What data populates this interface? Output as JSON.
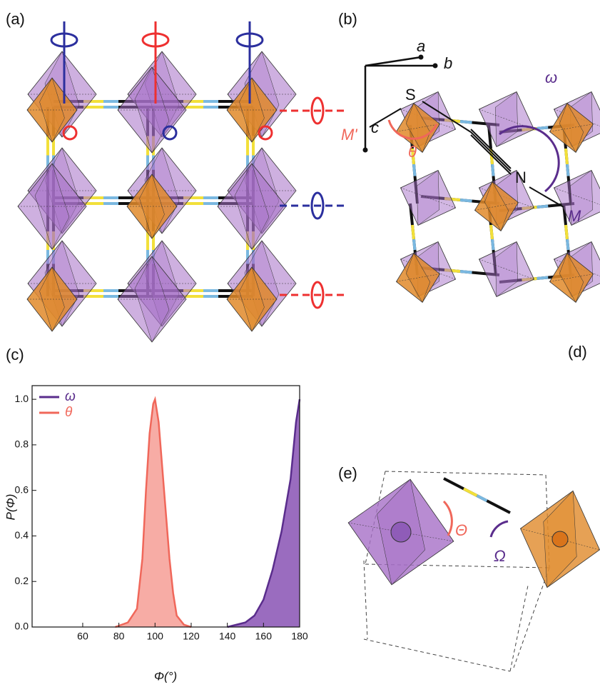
{
  "panels": {
    "a": {
      "label": "(a)"
    },
    "b": {
      "label": "(b)",
      "axes": [
        "a",
        "b",
        "c"
      ]
    },
    "d": {
      "label": "(d)",
      "atoms": [
        "S",
        "N",
        "M'",
        "M"
      ],
      "angles": [
        "θ",
        "ω"
      ]
    },
    "e": {
      "label": "(e)",
      "angles": [
        "Θ",
        "Ω"
      ]
    }
  },
  "chart_data": {
    "type": "area",
    "label": "(c)",
    "xlabel": "Φ(°)",
    "ylabel": "P(Φ)",
    "xlim": [
      32,
      180
    ],
    "xticks": [
      60,
      80,
      100,
      120,
      140,
      160,
      180
    ],
    "ylim": [
      0,
      1.06
    ],
    "yticks": [
      {
        "value": 0,
        "label": "0.0"
      },
      0.2,
      0.4,
      0.6,
      0.8,
      {
        "value": 1,
        "label": "1.0"
      }
    ],
    "legend": "upper left",
    "series": [
      {
        "name": "ω",
        "color": "#5a2d8c",
        "fill": "#8f5cb8",
        "x": [
          140,
          150,
          155,
          160,
          165,
          170,
          175,
          178,
          180
        ],
        "values": [
          0,
          0.02,
          0.05,
          0.12,
          0.25,
          0.42,
          0.65,
          0.9,
          1.0
        ]
      },
      {
        "name": "θ",
        "color": "#f0675a",
        "fill": "#f6a39b",
        "x": [
          78,
          85,
          90,
          93,
          95,
          97,
          99,
          100,
          102,
          104,
          106,
          108,
          110,
          112,
          116,
          120
        ],
        "values": [
          0,
          0.02,
          0.08,
          0.3,
          0.6,
          0.85,
          0.98,
          1.0,
          0.9,
          0.7,
          0.5,
          0.3,
          0.15,
          0.05,
          0.01,
          0
        ]
      }
    ]
  }
}
